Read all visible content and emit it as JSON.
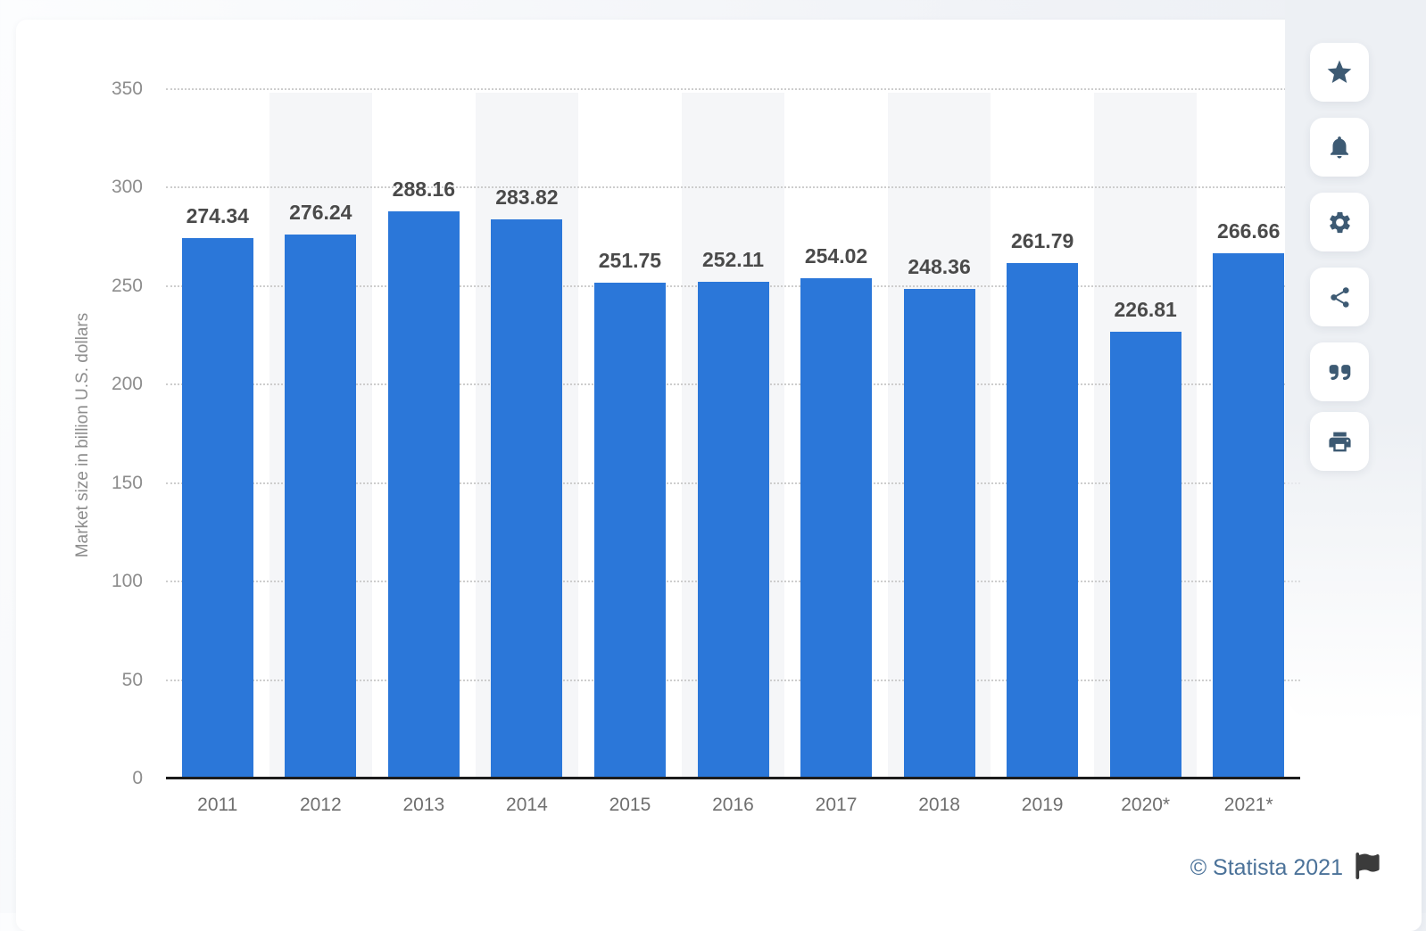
{
  "chart_data": {
    "type": "bar",
    "title": "",
    "categories": [
      "2011",
      "2012",
      "2013",
      "2014",
      "2015",
      "2016",
      "2017",
      "2018",
      "2019",
      "2020*",
      "2021*"
    ],
    "values": [
      274.34,
      276.24,
      288.16,
      283.82,
      251.75,
      252.11,
      254.02,
      248.36,
      261.79,
      226.81,
      266.66
    ],
    "value_labels": [
      "274.34",
      "276.24",
      "288.16",
      "283.82",
      "251.75",
      "252.11",
      "254.02",
      "248.36",
      "261.79",
      "226.81",
      "266.66"
    ],
    "xlabel": "",
    "ylabel": "Market size in billion U.S. dollars",
    "ylim": [
      0,
      350
    ],
    "yticks": [
      0,
      50,
      100,
      150,
      200,
      250,
      300,
      350
    ],
    "grid": "horizontal-dotted",
    "legend": "none",
    "bar_color": "#2b77d9",
    "stripe_color": "#f5f6f8",
    "striped_columns": "every second category starting 2012"
  },
  "toolbar": {
    "icon_color": "#3d5a73",
    "buttons": [
      {
        "name": "favorite",
        "icon": "star-icon"
      },
      {
        "name": "alerts",
        "icon": "bell-icon"
      },
      {
        "name": "settings",
        "icon": "gear-icon"
      },
      {
        "name": "share",
        "icon": "share-icon"
      },
      {
        "name": "cite",
        "icon": "quote-icon"
      },
      {
        "name": "print",
        "icon": "printer-icon"
      }
    ]
  },
  "footer": {
    "copyright": "© Statista 2021",
    "flag_icon": "flag-icon"
  }
}
